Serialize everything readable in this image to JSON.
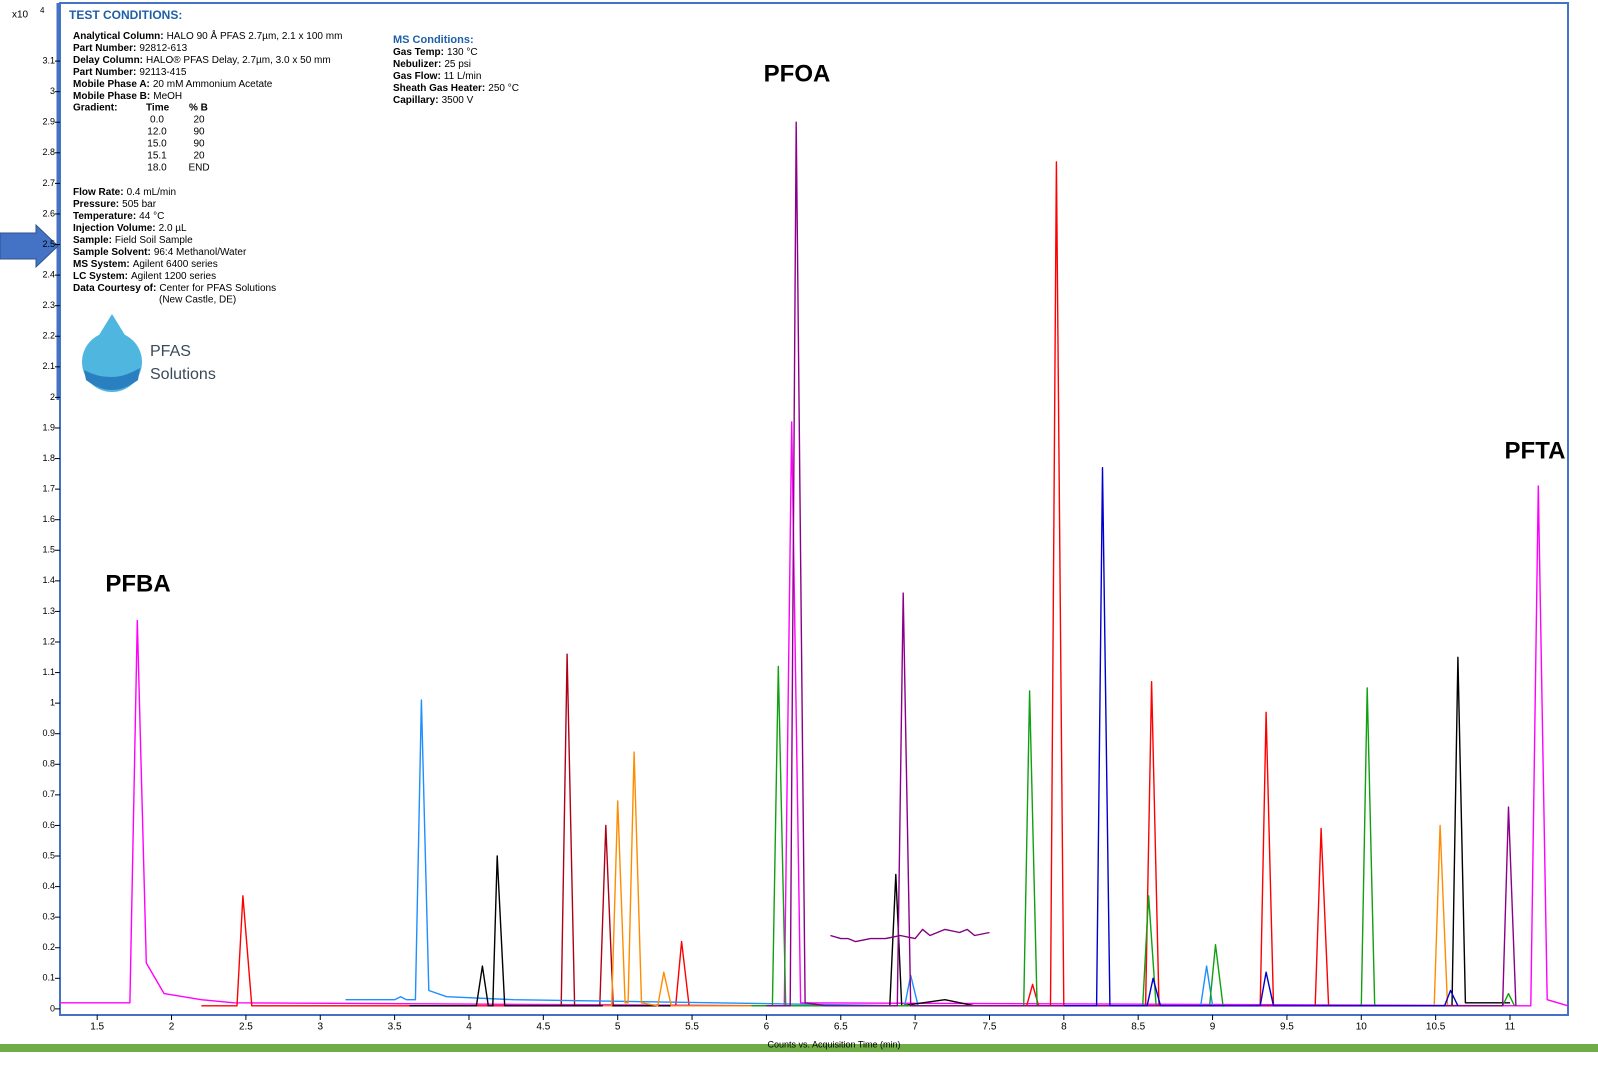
{
  "chart_data": {
    "type": "line",
    "y_multiplier": "x10",
    "y_exponent": "4",
    "x_label": "Counts vs. Acquisition Time (min)",
    "annotations": [
      "PFBA",
      "PFOA",
      "PFTA"
    ],
    "xlim": [
      1.25,
      11.39
    ],
    "ylim": [
      -0.02,
      3.29
    ],
    "xticks": [
      1.5,
      2,
      2.5,
      3,
      3.5,
      4,
      4.5,
      5,
      5.5,
      6,
      6.5,
      7,
      7.5,
      8,
      8.5,
      9,
      9.5,
      10,
      10.5,
      11
    ],
    "yticks": [
      0,
      0.1,
      0.2,
      0.3,
      0.4,
      0.5,
      0.6,
      0.7,
      0.8,
      0.9,
      1,
      1.1,
      1.2,
      1.3,
      1.4,
      1.5,
      1.6,
      1.7,
      1.8,
      1.9,
      2,
      2.1,
      2.2,
      2.3,
      2.4,
      2.5,
      2.6,
      2.7,
      2.8,
      2.9,
      3,
      3.1
    ],
    "series": [
      {
        "color": "#ff00ff",
        "x": [
          1.25,
          1.72,
          1.77,
          1.83,
          1.95,
          2.2,
          2.42,
          6.12,
          6.17,
          6.23,
          11.14,
          11.19,
          11.25,
          11.39
        ],
        "values": [
          0.02,
          0.02,
          1.27,
          0.15,
          0.05,
          0.03,
          0.02,
          0.01,
          1.92,
          0.02,
          0.01,
          1.71,
          0.03,
          0.01
        ]
      },
      {
        "color": "#ff0000",
        "x": [
          2.2,
          2.44,
          2.48,
          2.54,
          3.0,
          5.39,
          5.43,
          5.48,
          7.75,
          7.79,
          7.83,
          7.91,
          7.95,
          8.0,
          8.55,
          8.59,
          8.64,
          9.32,
          9.36,
          9.41,
          9.69,
          9.73,
          9.78,
          10.0
        ],
        "values": [
          0.01,
          0.01,
          0.37,
          0.01,
          0.01,
          0.01,
          0.22,
          0.01,
          0.01,
          0.08,
          0.01,
          0.01,
          2.77,
          0.01,
          0.01,
          1.07,
          0.01,
          0.01,
          0.97,
          0.01,
          0.01,
          0.59,
          0.01,
          0.01
        ]
      },
      {
        "color": "#b00018",
        "x": [
          4.4,
          4.62,
          4.66,
          4.71,
          4.88,
          4.92,
          4.97,
          5.1
        ],
        "values": [
          0.01,
          0.01,
          1.16,
          0.01,
          0.01,
          0.6,
          0.01,
          0.01
        ]
      },
      {
        "color": "#1e8fff",
        "x": [
          3.17,
          3.5,
          3.54,
          3.58,
          3.64,
          3.68,
          3.73,
          3.85,
          4.3,
          6.93,
          6.97,
          7.02,
          8.92,
          8.96,
          9.0
        ],
        "values": [
          0.03,
          0.03,
          0.04,
          0.03,
          0.03,
          1.01,
          0.06,
          0.04,
          0.03,
          0.01,
          0.11,
          0.01,
          0.01,
          0.14,
          0.01
        ]
      },
      {
        "color": "#000000",
        "x": [
          3.6,
          4.05,
          4.09,
          4.13,
          4.16,
          4.19,
          4.24,
          4.5,
          6.83,
          6.87,
          6.91,
          7.2,
          7.4,
          10.61,
          10.65,
          10.7,
          11.0
        ],
        "values": [
          0.01,
          0.01,
          0.14,
          0.01,
          0.01,
          0.5,
          0.01,
          0.01,
          0.01,
          0.44,
          0.01,
          0.03,
          0.01,
          0.01,
          1.15,
          0.02,
          0.02
        ]
      },
      {
        "color": "#ff8c00",
        "x": [
          4.9,
          4.96,
          5.0,
          5.05,
          5.07,
          5.11,
          5.16,
          5.27,
          5.31,
          5.36,
          5.6,
          10.49,
          10.53,
          10.58
        ],
        "values": [
          0.01,
          0.01,
          0.68,
          0.02,
          0.02,
          0.84,
          0.02,
          0.01,
          0.12,
          0.01,
          0.01,
          0.01,
          0.6,
          0.01
        ]
      },
      {
        "color": "#10a010",
        "x": [
          5.9,
          6.04,
          6.08,
          6.13,
          7.73,
          7.77,
          7.82,
          8.53,
          8.57,
          8.62,
          8.98,
          9.02,
          9.07,
          10.0,
          10.04,
          10.09,
          10.95,
          10.99,
          11.03
        ],
        "values": [
          0.01,
          0.01,
          1.12,
          0.01,
          0.01,
          1.04,
          0.01,
          0.01,
          0.37,
          0.01,
          0.01,
          0.21,
          0.01,
          0.01,
          1.05,
          0.01,
          0.01,
          0.05,
          0.01
        ]
      },
      {
        "color": "#8b008b",
        "x": [
          6.0,
          6.16,
          6.2,
          6.26,
          6.4,
          6.88,
          6.92,
          6.97,
          10.95,
          10.99,
          11.04
        ],
        "values": [
          0.01,
          0.01,
          2.9,
          0.02,
          0.01,
          0.01,
          1.36,
          0.01,
          0.01,
          0.66,
          0.01
        ]
      },
      {
        "color": "#0000cd",
        "x": [
          8.0,
          8.22,
          8.26,
          8.31,
          8.56,
          8.6,
          8.65,
          9.32,
          9.36,
          9.41,
          10.56,
          10.6,
          10.65
        ],
        "values": [
          0.01,
          0.01,
          1.77,
          0.01,
          0.01,
          0.1,
          0.01,
          0.01,
          0.12,
          0.01,
          0.01,
          0.06,
          0.01
        ]
      },
      {
        "color": "#800080",
        "x": [
          6.43,
          6.5,
          6.55,
          6.6,
          6.7,
          6.8,
          6.9,
          7.0,
          7.05,
          7.1,
          7.2,
          7.3,
          7.35,
          7.4,
          7.5
        ],
        "values": [
          0.24,
          0.23,
          0.23,
          0.22,
          0.23,
          0.23,
          0.24,
          0.23,
          0.26,
          0.24,
          0.26,
          0.25,
          0.26,
          0.24,
          0.25
        ]
      }
    ]
  },
  "test_conditions": {
    "title": "TEST CONDITIONS:",
    "items": [
      {
        "label": "Analytical Column:",
        "value": "HALO 90 Å PFAS 2.7µm, 2.1 x 100 mm"
      },
      {
        "label": "Part Number:",
        "value": "92812-613"
      },
      {
        "label": "Delay Column:",
        "value": "HALO® PFAS Delay, 2.7µm, 3.0 x 50 mm"
      },
      {
        "label": "Part Number:",
        "value": "92113-415"
      },
      {
        "label": "Mobile Phase A:",
        "value": "20 mM Ammonium Acetate"
      },
      {
        "label": "Mobile Phase B:",
        "value": "MeOH"
      }
    ],
    "gradient": {
      "label": "Gradient:",
      "headers": [
        "Time",
        "% B"
      ],
      "rows": [
        [
          "0.0",
          "20"
        ],
        [
          "12.0",
          "90"
        ],
        [
          "15.0",
          "90"
        ],
        [
          "15.1",
          "20"
        ],
        [
          "18.0",
          "END"
        ]
      ]
    },
    "items2": [
      {
        "label": "Flow Rate:",
        "value": "0.4 mL/min"
      },
      {
        "label": "Pressure:",
        "value": "505 bar"
      },
      {
        "label": "Temperature:",
        "value": "44 °C"
      },
      {
        "label": "Injection Volume:",
        "value": "2.0 µL"
      },
      {
        "label": "Sample:",
        "value": "Field Soil Sample"
      },
      {
        "label": "Sample Solvent:",
        "value": "96:4 Methanol/Water"
      },
      {
        "label": "MS System:",
        "value": "Agilent 6400 series"
      },
      {
        "label": "LC System:",
        "value": "Agilent 1200 series"
      },
      {
        "label": "Data Courtesy of:",
        "value": "Center for PFAS Solutions"
      }
    ],
    "note": "(New Castle, DE)"
  },
  "ms_conditions": {
    "title": "MS Conditions:",
    "items": [
      {
        "label": "Gas Temp:",
        "value": "130 °C"
      },
      {
        "label": "Nebulizer:",
        "value": "25 psi"
      },
      {
        "label": "Gas Flow:",
        "value": "11 L/min"
      },
      {
        "label": "Sheath Gas Heater:",
        "value": "250 °C"
      },
      {
        "label": "Capillary:",
        "value": "3500 V"
      }
    ]
  },
  "logo": [
    "PFAS",
    "Solutions"
  ]
}
